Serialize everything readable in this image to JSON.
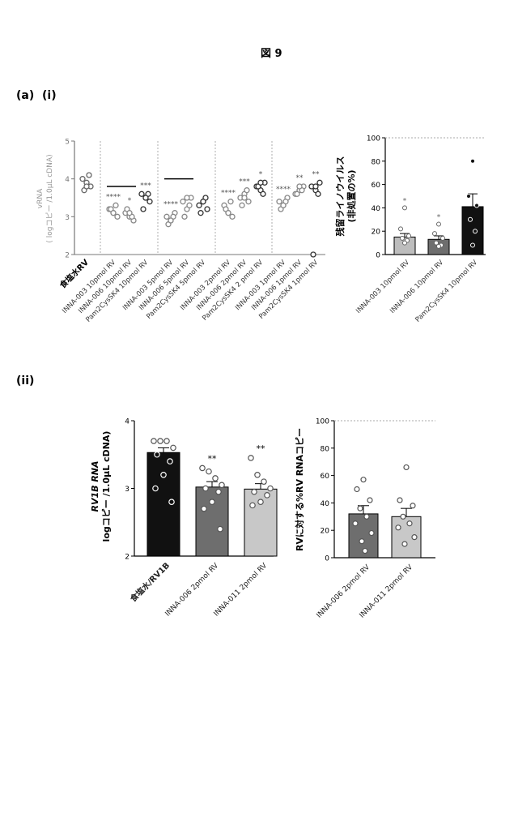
{
  "figure_title": "図 9",
  "panel_a_label": "(a)",
  "panel_a_sub": "(i)",
  "panel_b_label": "(ii)",
  "chart_data": [
    {
      "type": "scatter",
      "ylabel_top": "vRNA",
      "ylabel": "( logコピー /1.0μL cDNA)",
      "ylim": [
        2,
        5
      ],
      "yticks": [
        "2",
        "3",
        "4",
        "5"
      ],
      "categories": [
        "食塩水RV",
        "INNA-003 10pmol RV",
        "INNA-006 10pmol RV",
        "Pam2CysSK4 10pmol RV",
        "INNA-003 5pmol RV",
        "INNA-006 5pmol RV",
        "Pam2CysSK4 5pmol RV",
        "INNA-003 2pmol RV",
        "INNA-006 2pmol RV",
        "Pam2CysSK4 2 pmol RV",
        "INNA-003 1pmol RV",
        "INNA-006 1pmol RV",
        "Pam2CysSK4 1pmol RV"
      ],
      "points": [
        [
          4.0,
          3.9,
          3.8,
          3.7,
          4.1,
          3.8
        ],
        [
          3.2,
          3.1,
          3.0,
          3.2,
          3.3,
          3.1
        ],
        [
          3.1,
          3.0,
          2.9,
          3.2,
          3.0,
          3.1
        ],
        [
          3.6,
          3.5,
          3.4,
          3.2,
          3.6,
          3.5
        ],
        [
          3.0,
          2.9,
          3.1,
          2.8,
          3.0,
          2.9
        ],
        [
          3.4,
          3.2,
          3.5,
          3.0,
          3.3,
          3.5
        ],
        [
          3.3,
          3.4,
          3.2,
          3.1,
          3.5,
          3.4
        ],
        [
          3.3,
          3.1,
          3.0,
          3.2,
          3.4,
          3.1
        ],
        [
          3.5,
          3.6,
          3.4,
          3.3,
          3.7,
          3.5
        ],
        [
          3.8,
          3.7,
          3.9,
          3.8,
          3.6,
          3.9
        ],
        [
          3.4,
          3.3,
          3.5,
          3.2,
          3.4,
          3.3
        ],
        [
          3.6,
          3.7,
          3.8,
          3.6,
          3.7,
          3.8
        ],
        [
          3.8,
          3.7,
          3.9,
          2.0,
          3.6,
          3.8
        ]
      ],
      "means": [
        null,
        3.8,
        null,
        null,
        4.0,
        null,
        null,
        null,
        null,
        null,
        null,
        null,
        null
      ],
      "annotations": [
        "",
        "****",
        "*",
        "***",
        "****",
        "",
        "",
        "****",
        "***",
        "*",
        "****",
        "**",
        "**"
      ]
    },
    {
      "type": "bar",
      "ylabel": "残留ライノウイルス",
      "ylabel2": "(非処置の%)",
      "ylim": [
        0,
        100
      ],
      "yticks": [
        "0",
        "20",
        "40",
        "60",
        "80",
        "100"
      ],
      "categories": [
        "INNA-003 10pmol RV",
        "INNA-006 10pmol RV",
        "Pam2CysSK4 10pmol RV"
      ],
      "values": [
        15,
        13,
        41
      ],
      "errors": [
        3,
        3,
        11
      ],
      "colors": [
        "#bdbdbd",
        "#6e6e6e",
        "#111111"
      ],
      "points": [
        [
          40,
          22,
          16,
          14,
          12,
          10
        ],
        [
          26,
          18,
          14,
          10,
          8,
          7
        ],
        [
          80,
          50,
          42,
          30,
          20,
          8
        ]
      ],
      "annotations": [
        "*",
        "*",
        ""
      ],
      "reference_line": 100
    },
    {
      "type": "bar",
      "ylabel_top": "RV1B RNA",
      "ylabel": "logコピー /1.0μL cDNA)",
      "ylim": [
        2,
        4
      ],
      "yticks": [
        "2",
        "3",
        "4"
      ],
      "categories": [
        "食塩水/RV1B",
        "INNA-006 2pmol RV",
        "INNA-011 2pmol RV"
      ],
      "values": [
        3.53,
        3.02,
        2.99
      ],
      "errors": [
        0.07,
        0.08,
        0.08
      ],
      "colors": [
        "#111111",
        "#6e6e6e",
        "#c8c8c8"
      ],
      "points": [
        [
          3.7,
          3.7,
          3.7,
          3.6,
          3.5,
          3.4,
          3.2,
          3.0,
          2.8
        ],
        [
          3.3,
          3.25,
          3.15,
          3.05,
          3.0,
          2.95,
          2.8,
          2.7,
          2.4
        ],
        [
          3.45,
          3.2,
          3.1,
          3.0,
          2.95,
          2.9,
          2.8,
          2.75
        ]
      ],
      "annotations": [
        "",
        "**",
        "**"
      ]
    },
    {
      "type": "bar",
      "ylabel": "RVに対する%RV RNAコピー",
      "ylim": [
        0,
        100
      ],
      "yticks": [
        "0",
        "20",
        "40",
        "60",
        "80",
        "100"
      ],
      "categories": [
        "INNA-006 2pmol RV",
        "INNA-011 2pmol RV"
      ],
      "values": [
        32,
        30
      ],
      "errors": [
        6,
        6
      ],
      "colors": [
        "#6e6e6e",
        "#c8c8c8"
      ],
      "points": [
        [
          57,
          50,
          42,
          36,
          30,
          25,
          18,
          12,
          5
        ],
        [
          66,
          42,
          38,
          30,
          25,
          22,
          15,
          10
        ]
      ],
      "reference_line": 100
    }
  ]
}
